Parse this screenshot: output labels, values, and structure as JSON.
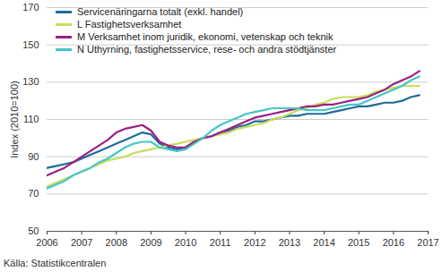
{
  "chart_data": {
    "type": "line",
    "y_label": "Index (2010=100)",
    "source": "Källa: Statistikcentralen",
    "x": [
      2006,
      2006.25,
      2006.5,
      2006.75,
      2007,
      2007.25,
      2007.5,
      2007.75,
      2008,
      2008.25,
      2008.5,
      2008.75,
      2009,
      2009.25,
      2009.5,
      2009.75,
      2010,
      2010.25,
      2010.5,
      2010.75,
      2011,
      2011.25,
      2011.5,
      2011.75,
      2012,
      2012.25,
      2012.5,
      2012.75,
      2013,
      2013.25,
      2013.5,
      2013.75,
      2014,
      2014.25,
      2014.5,
      2014.75,
      2015,
      2015.25,
      2015.5,
      2015.75,
      2016,
      2016.25,
      2016.5,
      2016.75
    ],
    "series": [
      {
        "name": "Servicenäringarna totalt (exkl. handel)",
        "color": "#1f6b9a",
        "values": [
          84,
          85,
          86,
          87,
          89,
          91,
          93,
          95,
          97,
          99,
          101,
          103,
          102,
          97,
          95,
          94,
          95,
          98,
          100,
          101,
          103,
          104,
          106,
          107,
          109,
          109,
          110,
          111,
          112,
          112,
          113,
          113,
          113,
          114,
          115,
          116,
          117,
          117,
          118,
          119,
          119,
          120,
          122,
          123
        ]
      },
      {
        "name": "L Fastighetsverksamhet",
        "color": "#c8dd5a",
        "values": [
          74,
          76,
          78,
          80,
          82,
          84,
          86,
          88,
          89,
          90,
          92,
          93,
          94,
          95,
          96,
          97,
          98,
          99,
          100,
          101,
          102,
          103,
          105,
          106,
          107,
          108,
          110,
          111,
          113,
          115,
          116,
          118,
          119,
          121,
          122,
          122,
          122,
          123,
          125,
          126,
          127,
          128,
          128,
          128
        ]
      },
      {
        "name": "M Verksamhet inom juridik, ekonomi, vetenskap och teknik",
        "color": "#9c1f85",
        "values": [
          80,
          82,
          84,
          87,
          90,
          93,
          96,
          99,
          103,
          105,
          106,
          107,
          104,
          98,
          96,
          95,
          95,
          98,
          100,
          101,
          103,
          105,
          107,
          109,
          111,
          112,
          113,
          114,
          115,
          116,
          117,
          117,
          118,
          118,
          119,
          120,
          121,
          122,
          124,
          126,
          129,
          131,
          133,
          136
        ]
      },
      {
        "name": "N Uthyrning, fastighetsservice, rese- och andra stödtjänster",
        "color": "#45c6c6",
        "values": [
          73,
          75,
          77,
          80,
          82,
          84,
          87,
          89,
          92,
          95,
          97,
          98,
          98,
          95,
          94,
          93,
          94,
          97,
          100,
          104,
          107,
          109,
          111,
          113,
          114,
          115,
          116,
          116,
          116,
          116,
          115,
          115,
          115,
          116,
          117,
          118,
          118,
          120,
          122,
          124,
          126,
          128,
          131,
          133
        ]
      }
    ],
    "xlim": [
      2006,
      2017
    ],
    "xticks": [
      2006,
      2007,
      2008,
      2009,
      2010,
      2011,
      2012,
      2013,
      2014,
      2015,
      2016,
      2017
    ],
    "ylim": [
      50,
      170
    ],
    "yticks": [
      50,
      70,
      90,
      110,
      130,
      150,
      170
    ],
    "grid": true,
    "legend": "top-left"
  }
}
